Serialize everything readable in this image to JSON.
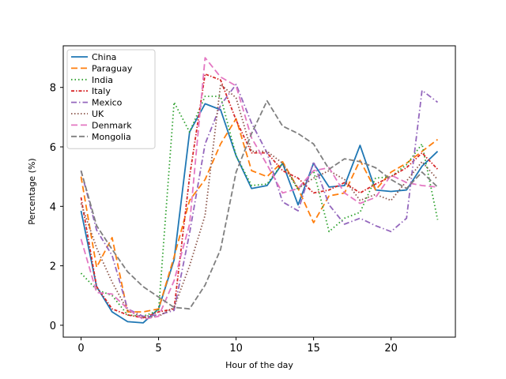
{
  "chart_data": {
    "type": "line",
    "xlabel": "Hour of the day",
    "ylabel": "Percentage (%)",
    "xlim": [
      -1.15,
      24.15
    ],
    "ylim": [
      -0.4,
      9.4
    ],
    "xticks": [
      0,
      5,
      10,
      15,
      20
    ],
    "yticks": [
      0,
      2,
      4,
      6,
      8
    ],
    "legend_position": "top-left",
    "grid": false,
    "x": [
      0,
      1,
      2,
      3,
      4,
      5,
      6,
      7,
      8,
      9,
      10,
      11,
      12,
      13,
      14,
      15,
      16,
      17,
      18,
      19,
      20,
      21,
      22,
      23
    ],
    "series": [
      {
        "name": "China",
        "color": "#1f77b4",
        "dash": "solid",
        "values": [
          3.85,
          1.3,
          0.45,
          0.12,
          0.08,
          0.55,
          2.2,
          6.5,
          7.45,
          7.25,
          5.7,
          4.6,
          4.7,
          5.45,
          4.05,
          5.45,
          4.65,
          4.7,
          6.05,
          4.55,
          4.5,
          4.55,
          5.35,
          5.85
        ]
      },
      {
        "name": "Paraguay",
        "color": "#ff7f0e",
        "dash": "8,4",
        "values": [
          5.0,
          1.95,
          2.95,
          0.45,
          0.45,
          0.55,
          2.3,
          4.2,
          4.9,
          6.1,
          6.95,
          5.2,
          5.0,
          5.5,
          4.6,
          3.45,
          4.35,
          4.45,
          5.55,
          4.55,
          5.15,
          5.45,
          5.85,
          6.25
        ]
      },
      {
        "name": "India",
        "color": "#2ca02c",
        "dash": "1.5,3",
        "values": [
          1.75,
          1.2,
          1.0,
          0.35,
          0.3,
          0.5,
          7.5,
          6.5,
          7.7,
          7.7,
          5.7,
          4.7,
          4.75,
          5.45,
          4.55,
          5.2,
          3.15,
          3.6,
          3.8,
          4.95,
          5.0,
          5.4,
          6.1,
          3.55
        ]
      },
      {
        "name": "Italy",
        "color": "#d62728",
        "dash": "4,2,1.5,2",
        "values": [
          4.3,
          1.3,
          0.55,
          0.35,
          0.25,
          0.45,
          0.55,
          5.0,
          8.45,
          8.25,
          6.9,
          5.8,
          5.8,
          5.2,
          4.95,
          4.45,
          4.55,
          4.8,
          4.45,
          4.75,
          5.0,
          5.3,
          5.8,
          5.25
        ]
      },
      {
        "name": "Mexico",
        "color": "#9467bd",
        "dash": "7,3,1.5,3",
        "values": [
          5.2,
          3.2,
          2.35,
          0.55,
          0.3,
          0.35,
          0.5,
          3.1,
          6.1,
          7.4,
          8.1,
          6.8,
          5.8,
          4.15,
          3.85,
          5.5,
          4.05,
          3.4,
          3.6,
          3.35,
          3.15,
          3.6,
          7.9,
          7.5
        ]
      },
      {
        "name": "UK",
        "color": "#8c564b",
        "dash": "1.5,2.5",
        "values": [
          4.1,
          2.6,
          1.45,
          0.5,
          0.25,
          0.3,
          0.6,
          2.0,
          3.7,
          8.1,
          7.65,
          5.85,
          5.85,
          5.45,
          4.6,
          4.95,
          5.2,
          4.9,
          4.2,
          4.4,
          4.2,
          4.85,
          5.5,
          4.9
        ]
      },
      {
        "name": "Denmark",
        "color": "#e377c2",
        "dash": "8,4",
        "values": [
          2.9,
          1.1,
          1.05,
          0.55,
          0.2,
          0.3,
          1.5,
          3.4,
          9.0,
          8.35,
          8.05,
          6.3,
          5.4,
          4.45,
          4.6,
          5.2,
          5.3,
          4.45,
          4.1,
          4.3,
          5.05,
          4.8,
          4.7,
          4.65
        ]
      },
      {
        "name": "Mongolia",
        "color": "#7f7f7f",
        "dash": "7,3",
        "values": [
          5.2,
          3.35,
          2.55,
          1.8,
          1.3,
          0.95,
          0.6,
          0.55,
          1.35,
          2.55,
          5.15,
          6.45,
          7.55,
          6.7,
          6.45,
          6.1,
          5.25,
          5.6,
          5.5,
          5.3,
          4.9,
          4.6,
          5.15,
          4.65
        ]
      }
    ]
  }
}
